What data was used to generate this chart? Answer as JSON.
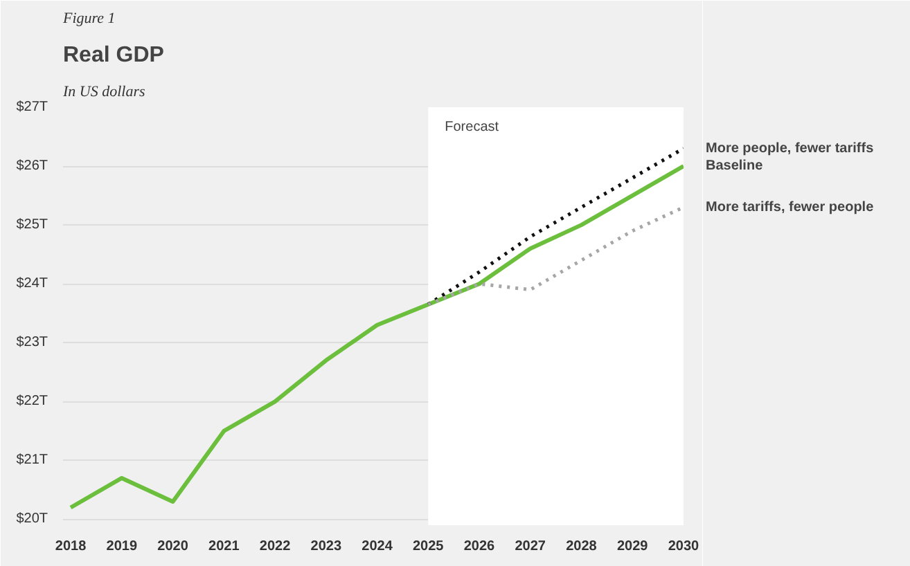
{
  "chart_data": {
    "type": "line",
    "title": "Real GDP",
    "subtitle": "In US dollars",
    "annotations": [
      "Figure 1"
    ],
    "x": [
      2018,
      2019,
      2020,
      2021,
      2022,
      2023,
      2024,
      2025,
      2026,
      2027,
      2028,
      2029,
      2030
    ],
    "series": [
      {
        "name": "Baseline",
        "color": "#6cbf3c",
        "line_style": "solid",
        "values": [
          20.2,
          20.7,
          20.3,
          21.5,
          22.0,
          22.7,
          23.3,
          23.65,
          24.0,
          24.6,
          25.0,
          25.5,
          26.0
        ]
      },
      {
        "name": "More people, fewer tariffs",
        "color": "#111111",
        "line_style": "dotted",
        "values": [
          null,
          null,
          null,
          null,
          null,
          null,
          null,
          23.65,
          24.2,
          24.8,
          25.3,
          25.8,
          26.3
        ]
      },
      {
        "name": "More tariffs, fewer people",
        "color": "#a6a6a6",
        "line_style": "dotted",
        "values": [
          null,
          null,
          null,
          null,
          null,
          null,
          null,
          23.65,
          24.0,
          23.9,
          24.4,
          24.9,
          25.3
        ]
      }
    ],
    "bands": [
      {
        "axis": "x",
        "from": 2025,
        "to": 2030,
        "label": "Forecast",
        "color": "#ffffff"
      }
    ],
    "xlim": [
      2017.85,
      2030
    ],
    "ylim": [
      19.9,
      27
    ],
    "xticks": [
      2018,
      2019,
      2020,
      2021,
      2022,
      2023,
      2024,
      2025,
      2026,
      2027,
      2028,
      2029,
      2030
    ],
    "yticks": [
      {
        "value": 20,
        "label": "$20T"
      },
      {
        "value": 21,
        "label": "$21T"
      },
      {
        "value": 22,
        "label": "$22T"
      },
      {
        "value": 23,
        "label": "$23T"
      },
      {
        "value": 24,
        "label": "$24T"
      },
      {
        "value": 25,
        "label": "$25T"
      },
      {
        "value": 26,
        "label": "$26T"
      },
      {
        "value": 27,
        "label": "$27T"
      }
    ],
    "grid": "y",
    "legend": "right",
    "marker": "none"
  }
}
